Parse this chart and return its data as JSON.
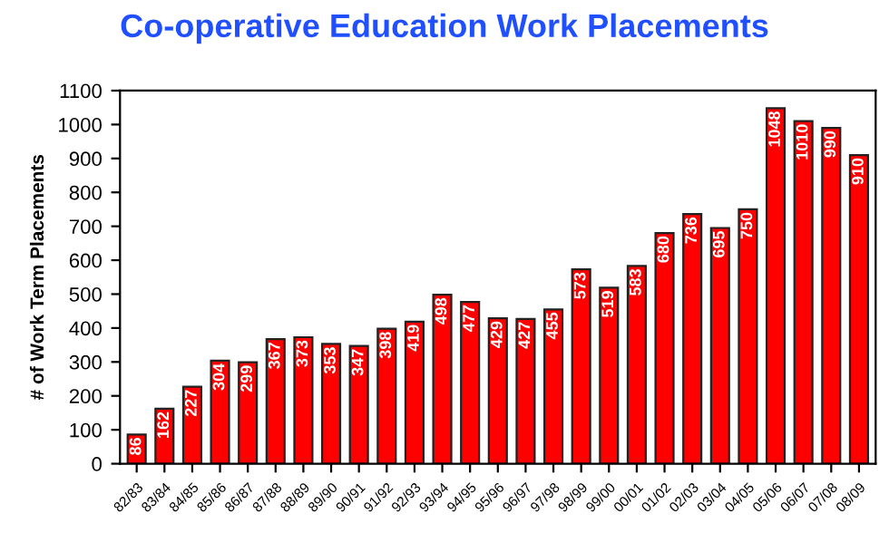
{
  "chart_data": {
    "type": "bar",
    "title": "Co-operative Education Work Placements",
    "ylabel": "# of Work Term Placements",
    "categories": [
      "82/83",
      "83/84",
      "84/85",
      "85/86",
      "86/87",
      "87/88",
      "88/89",
      "89/90",
      "90/91",
      "91/92",
      "92/93",
      "93/94",
      "94/95",
      "95/96",
      "96/97",
      "97/98",
      "98/99",
      "99/00",
      "00/01",
      "01/02",
      "02/03",
      "03/04",
      "04/05",
      "05/06",
      "06/07",
      "07/08",
      "08/09"
    ],
    "values": [
      86,
      162,
      227,
      304,
      299,
      367,
      373,
      353,
      347,
      398,
      419,
      498,
      477,
      429,
      427,
      455,
      573,
      519,
      583,
      680,
      736,
      695,
      750,
      1048,
      1010,
      990,
      910
    ],
    "color": "#ff0000",
    "data_labels": true,
    "grid": false,
    "legend": false,
    "ylim": [
      0,
      1100
    ],
    "yticks": [
      0,
      100,
      200,
      300,
      400,
      500,
      600,
      700,
      800,
      900,
      1000,
      1100
    ]
  }
}
